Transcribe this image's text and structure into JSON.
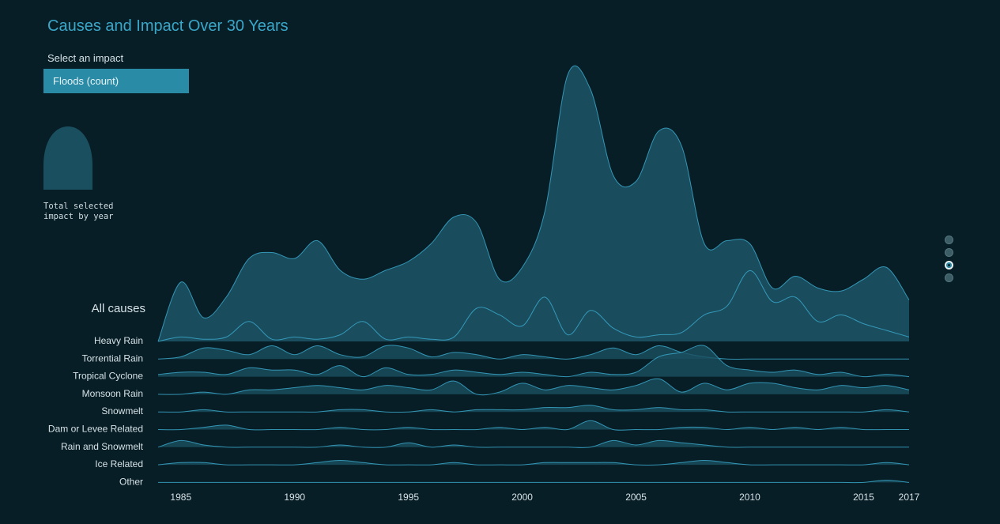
{
  "title": "Causes and Impact Over 30 Years",
  "impact_selector": {
    "label": "Select an impact",
    "selected": "Floods (count)"
  },
  "legend": {
    "text": "Total selected\nimpact by year"
  },
  "pagination": {
    "count": 4,
    "active_index": 2
  },
  "colors": {
    "background": "#081e27",
    "fill": "#1a4f60",
    "fill_highlight": "#2a7e95",
    "stroke": "#3aa7c9",
    "label": "#d5e2e6",
    "accent": "#3aa7c9"
  },
  "chart_data": {
    "type": "area",
    "chart_style": "ridgeline",
    "x_ticks": [
      1985,
      1990,
      1995,
      2000,
      2005,
      2010,
      2015,
      2017
    ],
    "x_range": [
      1984,
      2017
    ],
    "total_label": "All causes",
    "total": {
      "name": "All causes",
      "x": [
        1984,
        1985,
        1986,
        1987,
        1988,
        1989,
        1990,
        1991,
        1992,
        1993,
        1994,
        1995,
        1996,
        1997,
        1998,
        1999,
        2000,
        2001,
        2002,
        2003,
        2004,
        2005,
        2006,
        2007,
        2008,
        2009,
        2010,
        2011,
        2012,
        2013,
        2014,
        2015,
        2016,
        2017
      ],
      "values": [
        0,
        20,
        8,
        15,
        28,
        30,
        28,
        34,
        24,
        21,
        24,
        27,
        33,
        42,
        40,
        21,
        25,
        44,
        90,
        85,
        56,
        54,
        71,
        66,
        33,
        34,
        33,
        18,
        22,
        18,
        17,
        21,
        25,
        14
      ]
    },
    "series": [
      {
        "name": "Heavy Rain",
        "values": [
          0,
          2,
          1,
          2,
          9,
          1,
          2,
          1,
          3,
          9,
          1,
          2,
          1,
          2,
          15,
          12,
          7,
          20,
          3,
          14,
          6,
          2,
          3,
          4,
          12,
          16,
          32,
          18,
          20,
          9,
          12,
          8,
          5,
          2
        ]
      },
      {
        "name": "Torrential Rain",
        "values": [
          0,
          1,
          5,
          4,
          2,
          6,
          2,
          6,
          2,
          1,
          6,
          5,
          1,
          3,
          2,
          0,
          2,
          1,
          0,
          2,
          5,
          2,
          6,
          3,
          1,
          0,
          0,
          0,
          0,
          0,
          0,
          0,
          0,
          0
        ]
      },
      {
        "name": "Tropical Cyclone",
        "values": [
          1,
          2,
          2,
          1,
          4,
          3,
          3,
          1,
          5,
          0,
          4,
          1,
          1,
          3,
          2,
          1,
          2,
          1,
          0,
          2,
          1,
          2,
          9,
          11,
          14,
          5,
          3,
          2,
          3,
          1,
          2,
          0,
          1,
          0
        ]
      },
      {
        "name": "Monsoon Rain",
        "values": [
          0,
          0,
          1,
          0,
          2,
          2,
          3,
          4,
          3,
          2,
          4,
          3,
          2,
          6,
          0,
          1,
          5,
          2,
          4,
          3,
          2,
          4,
          7,
          1,
          5,
          2,
          5,
          5,
          3,
          2,
          4,
          3,
          4,
          2
        ]
      },
      {
        "name": "Snowmelt",
        "values": [
          0,
          0,
          1,
          0,
          0,
          0,
          0,
          0,
          1,
          1,
          0,
          0,
          1,
          0,
          1,
          1,
          1,
          2,
          2,
          3,
          1,
          1,
          2,
          1,
          1,
          0,
          0,
          0,
          0,
          0,
          0,
          0,
          1,
          0
        ]
      },
      {
        "name": "Dam or Levee Related",
        "values": [
          0,
          0,
          1,
          2,
          0,
          0,
          0,
          0,
          1,
          0,
          0,
          1,
          0,
          0,
          0,
          1,
          0,
          1,
          0,
          4,
          0,
          0,
          0,
          1,
          1,
          0,
          1,
          0,
          1,
          0,
          1,
          0,
          0,
          0
        ]
      },
      {
        "name": "Rain and Snowmelt",
        "values": [
          0,
          3,
          1,
          0,
          0,
          0,
          0,
          0,
          1,
          0,
          0,
          2,
          0,
          1,
          0,
          0,
          0,
          0,
          0,
          0,
          3,
          1,
          3,
          2,
          1,
          0,
          0,
          0,
          0,
          0,
          0,
          0,
          0,
          0
        ]
      },
      {
        "name": "Ice Related",
        "values": [
          0,
          1,
          1,
          0,
          0,
          0,
          0,
          1,
          2,
          1,
          0,
          0,
          0,
          1,
          0,
          0,
          0,
          1,
          1,
          1,
          1,
          0,
          0,
          1,
          2,
          1,
          0,
          0,
          0,
          0,
          0,
          0,
          1,
          0
        ]
      },
      {
        "name": "Other",
        "values": [
          0,
          0,
          0,
          0,
          0,
          0,
          0,
          0,
          0,
          0,
          0,
          0,
          0,
          0,
          0,
          0,
          0,
          0,
          0,
          0,
          0,
          0,
          0,
          0,
          0,
          0,
          0,
          0,
          0,
          0,
          0,
          0,
          1,
          0
        ]
      }
    ]
  }
}
